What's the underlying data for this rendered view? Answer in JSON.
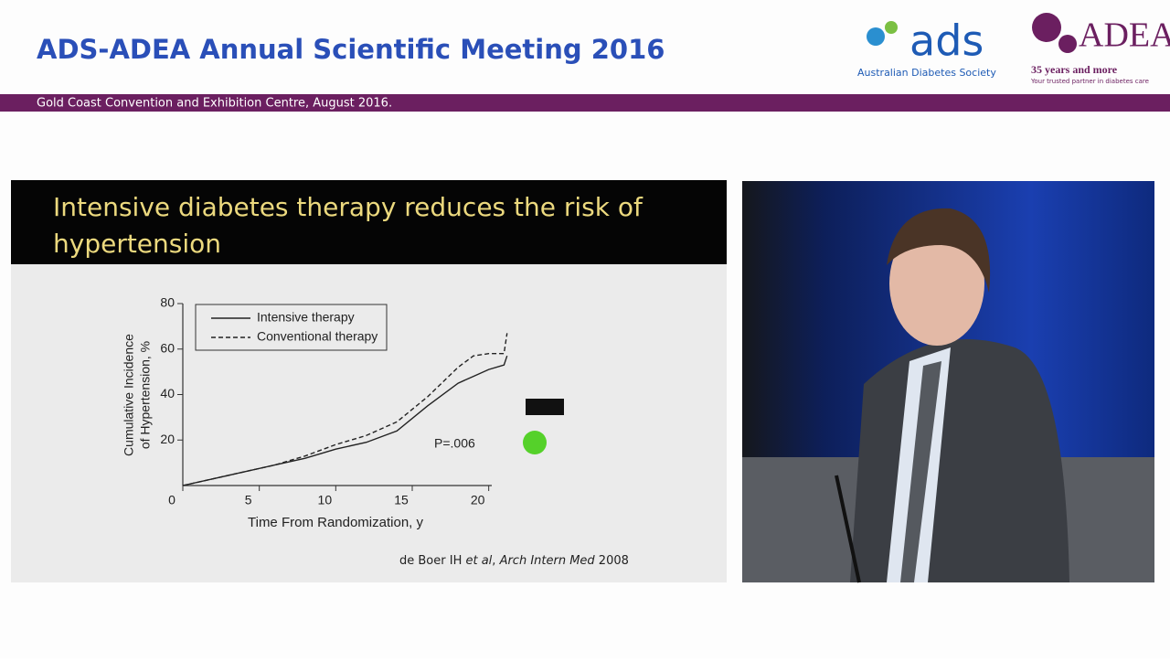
{
  "header": {
    "title": "ADS-ADEA Annual Scientific Meeting 2016",
    "subtitle": "Gold Coast Convention and Exhibition Centre, August 2016.",
    "ads_logo": "ads",
    "ads_name": "Australian Diabetes Society",
    "adea_logo": "ADEA",
    "adea_years": "35 years and more",
    "adea_tagline": "Your trusted partner in diabetes care"
  },
  "slide": {
    "title_lines": [
      "Intensive diabetes therapy reduces the risk of",
      "hypertension"
    ],
    "citation": [
      "de Boer IH ",
      "et al",
      ", ",
      "Arch Intern Med",
      " 2008"
    ]
  },
  "chart_data": {
    "type": "line",
    "xlabel": "Time From Randomization, y",
    "ylabel": [
      "Cumulative Incidence",
      "of Hypertension, %"
    ],
    "x": [
      0,
      2,
      4,
      6,
      8,
      10,
      12,
      14,
      16,
      18,
      19,
      20,
      21,
      21.2
    ],
    "series": [
      {
        "name": "Intensive therapy",
        "color": "#222222",
        "line_style": "solid",
        "values": [
          0,
          3,
          6,
          9,
          12,
          16,
          19,
          24,
          35,
          45,
          48,
          51,
          53,
          57
        ]
      },
      {
        "name": "Conventional therapy",
        "color": "#222222",
        "line_style": "dashed",
        "values": [
          0,
          3,
          6,
          9,
          13,
          18,
          22,
          28,
          39,
          52,
          57,
          58,
          58,
          67
        ]
      }
    ],
    "xlim": [
      0,
      20.2
    ],
    "ylim": [
      0,
      80
    ],
    "xticks": [
      0,
      5,
      10,
      15,
      20
    ],
    "yticks": [
      20,
      40,
      60,
      80
    ],
    "annotation": "P=.006",
    "legend": "top-left"
  }
}
